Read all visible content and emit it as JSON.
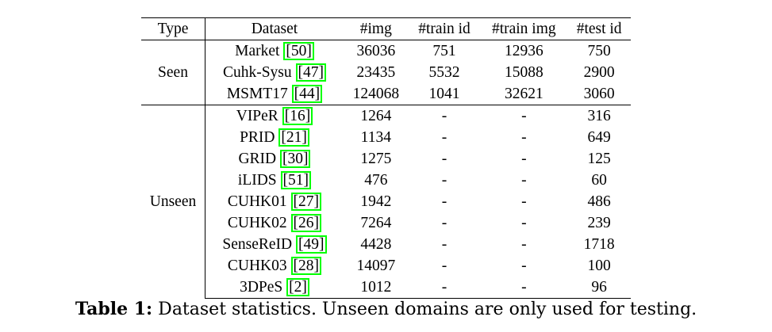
{
  "headers": [
    "Type",
    "Dataset",
    "#img",
    "#train id",
    "#train img",
    "#test id"
  ],
  "groups": [
    {
      "type": "Seen",
      "rows": [
        {
          "name": "Market",
          "ref": "50",
          "img": "36036",
          "train_id": "751",
          "train_img": "12936",
          "test_id": "750"
        },
        {
          "name": "Cuhk-Sysu",
          "ref": "47",
          "img": "23435",
          "train_id": "5532",
          "train_img": "15088",
          "test_id": "2900"
        },
        {
          "name": "MSMT17",
          "ref": "44",
          "img": "124068",
          "train_id": "1041",
          "train_img": "32621",
          "test_id": "3060"
        }
      ]
    },
    {
      "type": "Unseen",
      "rows": [
        {
          "name": "VIPeR",
          "ref": "16",
          "img": "1264",
          "train_id": "-",
          "train_img": "-",
          "test_id": "316"
        },
        {
          "name": "PRID",
          "ref": "21",
          "img": "1134",
          "train_id": "-",
          "train_img": "-",
          "test_id": "649"
        },
        {
          "name": "GRID",
          "ref": "30",
          "img": "1275",
          "train_id": "-",
          "train_img": "-",
          "test_id": "125"
        },
        {
          "name": "iLIDS",
          "ref": "51",
          "img": "476",
          "train_id": "-",
          "train_img": "-",
          "test_id": "60"
        },
        {
          "name": "CUHK01",
          "ref": "27",
          "img": "1942",
          "train_id": "-",
          "train_img": "-",
          "test_id": "486"
        },
        {
          "name": "CUHK02",
          "ref": "26",
          "img": "7264",
          "train_id": "-",
          "train_img": "-",
          "test_id": "239"
        },
        {
          "name": "SenseReID",
          "ref": "49",
          "img": "4428",
          "train_id": "-",
          "train_img": "-",
          "test_id": "1718"
        },
        {
          "name": "CUHK03",
          "ref": "28",
          "img": "14097",
          "train_id": "-",
          "train_img": "-",
          "test_id": "100"
        },
        {
          "name": "3DPeS",
          "ref": "2",
          "img": "1012",
          "train_id": "-",
          "train_img": "-",
          "test_id": "96"
        }
      ]
    }
  ],
  "caption": {
    "label": "Table 1:",
    "text": " Dataset statistics. Unseen domains are only used for testing."
  }
}
